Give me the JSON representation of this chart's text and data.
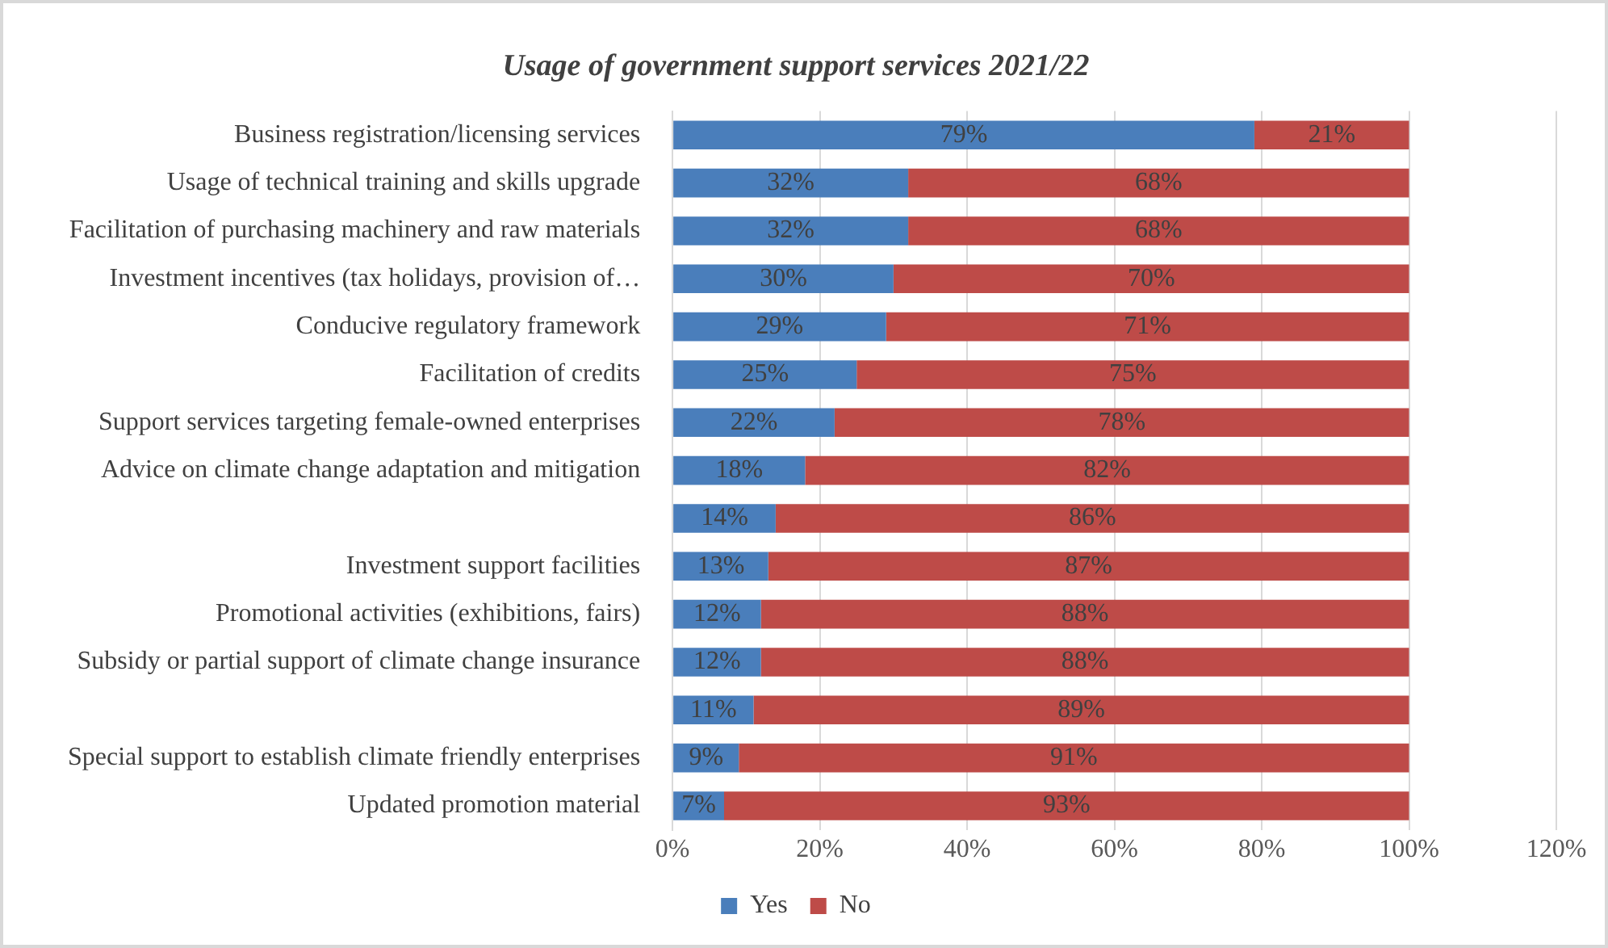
{
  "chart_data": {
    "type": "bar",
    "orientation": "horizontal",
    "stacked": true,
    "title": "Usage of government support services 2021/22",
    "categories": [
      "Business registration/licensing services",
      "Usage of technical training and skills upgrade",
      "Facilitation of purchasing machinery and raw materials",
      "Investment incentives (tax holidays, provision of…",
      "Conducive regulatory framework",
      "Facilitation of credits",
      "Support services targeting female-owned enterprises",
      "Advice on climate change adaptation and mitigation",
      null,
      "Investment support facilities",
      "Promotional activities (exhibitions, fairs)",
      "Subsidy or partial support of climate change insurance",
      null,
      "Special support to establish climate friendly enterprises",
      "Updated promotion material"
    ],
    "series": [
      {
        "name": "Yes",
        "color": "#4a7ebb",
        "values": [
          79,
          32,
          32,
          30,
          29,
          25,
          22,
          18,
          14,
          13,
          12,
          12,
          11,
          9,
          7
        ],
        "value_labels": [
          "79%",
          "32%",
          "32%",
          "30%",
          "29%",
          "25%",
          "22%",
          "18%",
          "14%",
          "13%",
          "12%",
          "12%",
          "11%",
          "9%",
          "7%"
        ]
      },
      {
        "name": "No",
        "color": "#be4b48",
        "values": [
          21,
          68,
          68,
          70,
          71,
          75,
          78,
          82,
          86,
          87,
          88,
          88,
          89,
          91,
          93
        ],
        "value_labels": [
          "21%",
          "68%",
          "68%",
          "70%",
          "71%",
          "75%",
          "78%",
          "82%",
          "86%",
          "87%",
          "88%",
          "88%",
          "89%",
          "91%",
          "93%"
        ]
      }
    ],
    "xlim": [
      0,
      120
    ],
    "xticks": [
      {
        "value": 0,
        "label": "0%"
      },
      {
        "value": 20,
        "label": "20%"
      },
      {
        "value": 40,
        "label": "40%"
      },
      {
        "value": 60,
        "label": "60%"
      },
      {
        "value": 80,
        "label": "80%"
      },
      {
        "value": 100,
        "label": "100%"
      },
      {
        "value": 120,
        "label": "120%"
      }
    ],
    "grid": "x",
    "legend": "bottom"
  }
}
